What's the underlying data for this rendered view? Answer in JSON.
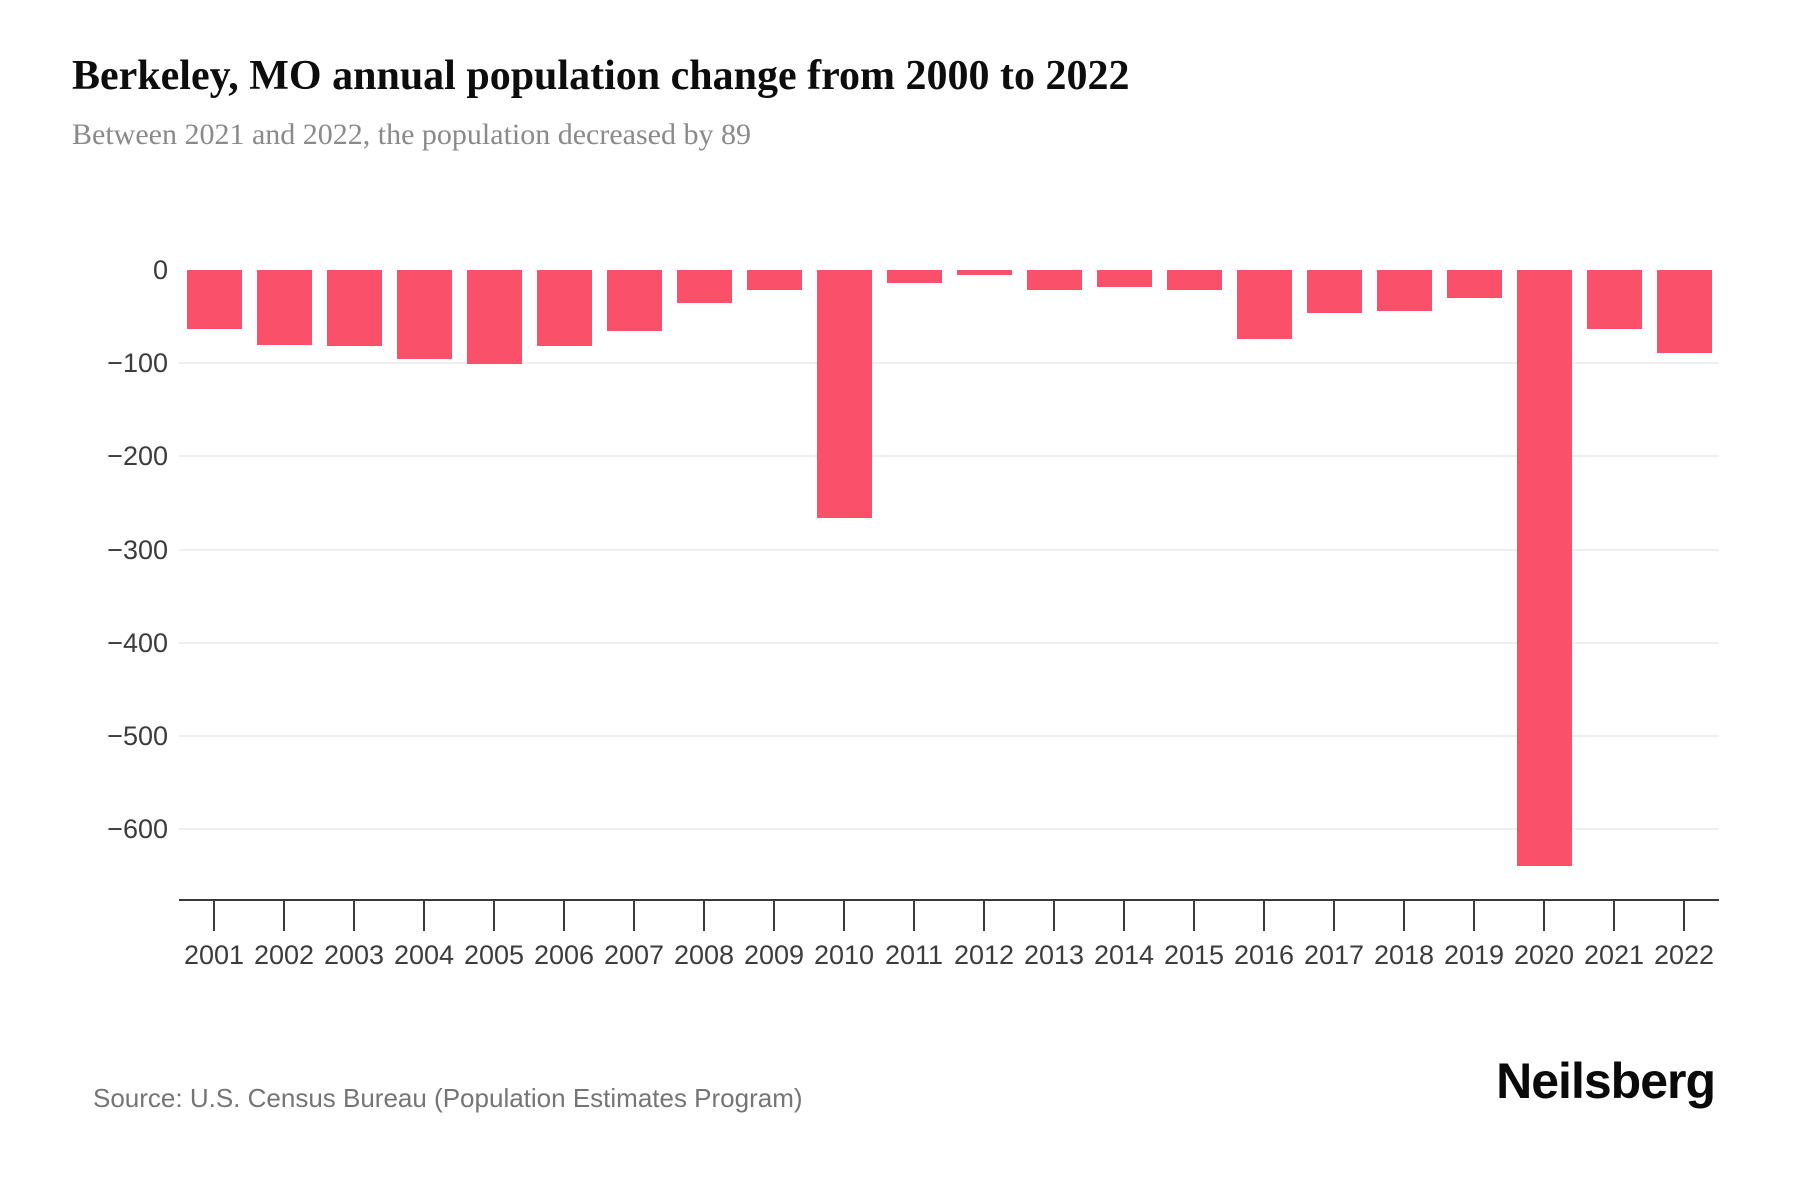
{
  "header": {
    "title": "Berkeley, MO annual population change from 2000 to 2022",
    "subtitle": "Between 2021 and 2022, the population decreased by 89"
  },
  "chart_data": {
    "type": "bar",
    "title": "Berkeley, MO annual population change from 2000 to 2022",
    "subtitle": "Between 2021 and 2022, the population decreased by 89",
    "categories": [
      "2001",
      "2002",
      "2003",
      "2004",
      "2005",
      "2006",
      "2007",
      "2008",
      "2009",
      "2010",
      "2011",
      "2012",
      "2013",
      "2014",
      "2015",
      "2016",
      "2017",
      "2018",
      "2019",
      "2020",
      "2021",
      "2022"
    ],
    "values": [
      -63,
      -81,
      -82,
      -95,
      -101,
      -82,
      -65,
      -35,
      -21,
      -266,
      -14,
      -5,
      -21,
      -18,
      -21,
      -74,
      -46,
      -44,
      -30,
      -640,
      -63,
      -89
    ],
    "series_name": "Annual population change",
    "xlabel": "",
    "ylabel": "",
    "yticks": [
      0,
      -100,
      -200,
      -300,
      -400,
      -500,
      -600
    ],
    "ylim": [
      -676,
      0
    ],
    "grid": "horizontal",
    "legend": "none",
    "bar_color": "#fa5069",
    "grid_color": "#efefef",
    "axis_color": "#3a3a3a",
    "tick_label_color": "#3c3c3c"
  },
  "footer": {
    "source": "Source: U.S. Census Bureau (Population Estimates Program)",
    "logo": "Neilsberg"
  }
}
